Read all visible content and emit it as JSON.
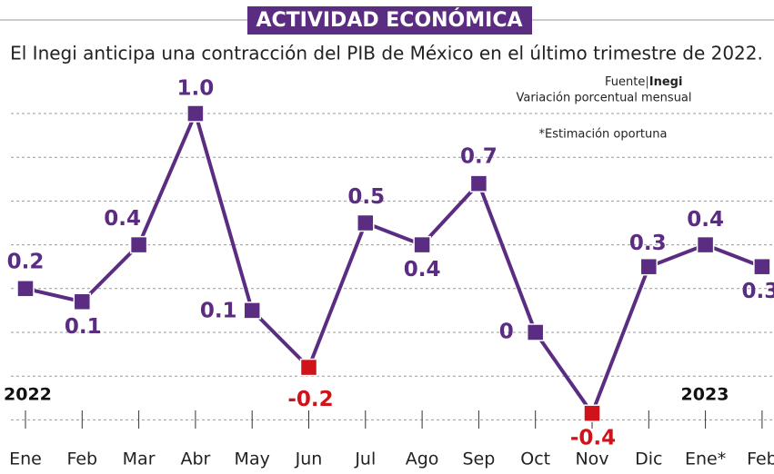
{
  "chart_data": {
    "type": "line",
    "title": "ACTIVIDAD ECONÓMICA",
    "subtitle": "El Inegi anticipa una contracción del PIB de México en el último trimestre de 2022.",
    "source_prefix": "Fuente",
    "source": "Inegi",
    "unit_note": "Variación porcentual mensual",
    "footnote": "*Estimación oportuna",
    "year_labels": [
      "2022",
      "2023"
    ],
    "categories": [
      "Ene",
      "Feb",
      "Mar",
      "Abr",
      "May",
      "Jun",
      "Jul",
      "Ago",
      "Sep",
      "Oct",
      "Nov",
      "Dic",
      "Ene*",
      "Feb"
    ],
    "values": [
      0.2,
      0.14,
      0.4,
      1.0,
      0.1,
      -0.16,
      0.5,
      0.4,
      0.68,
      0,
      -0.37,
      0.3,
      0.4,
      0.3
    ],
    "value_labels": [
      "0.2",
      "0.1",
      "0.4",
      "1.0",
      "0.1",
      "-0.2",
      "0.5",
      "0.4",
      "0.7",
      "0",
      "-0.4",
      "0.3",
      "0.4",
      "0.3"
    ],
    "color": "#5b2d82",
    "negative_color": "#d0121b",
    "ylim": [
      -0.5,
      1.1
    ],
    "yticks": [
      -0.4,
      -0.2,
      0,
      0.2,
      0.4,
      0.6,
      0.8,
      1.0
    ],
    "grid": true
  }
}
